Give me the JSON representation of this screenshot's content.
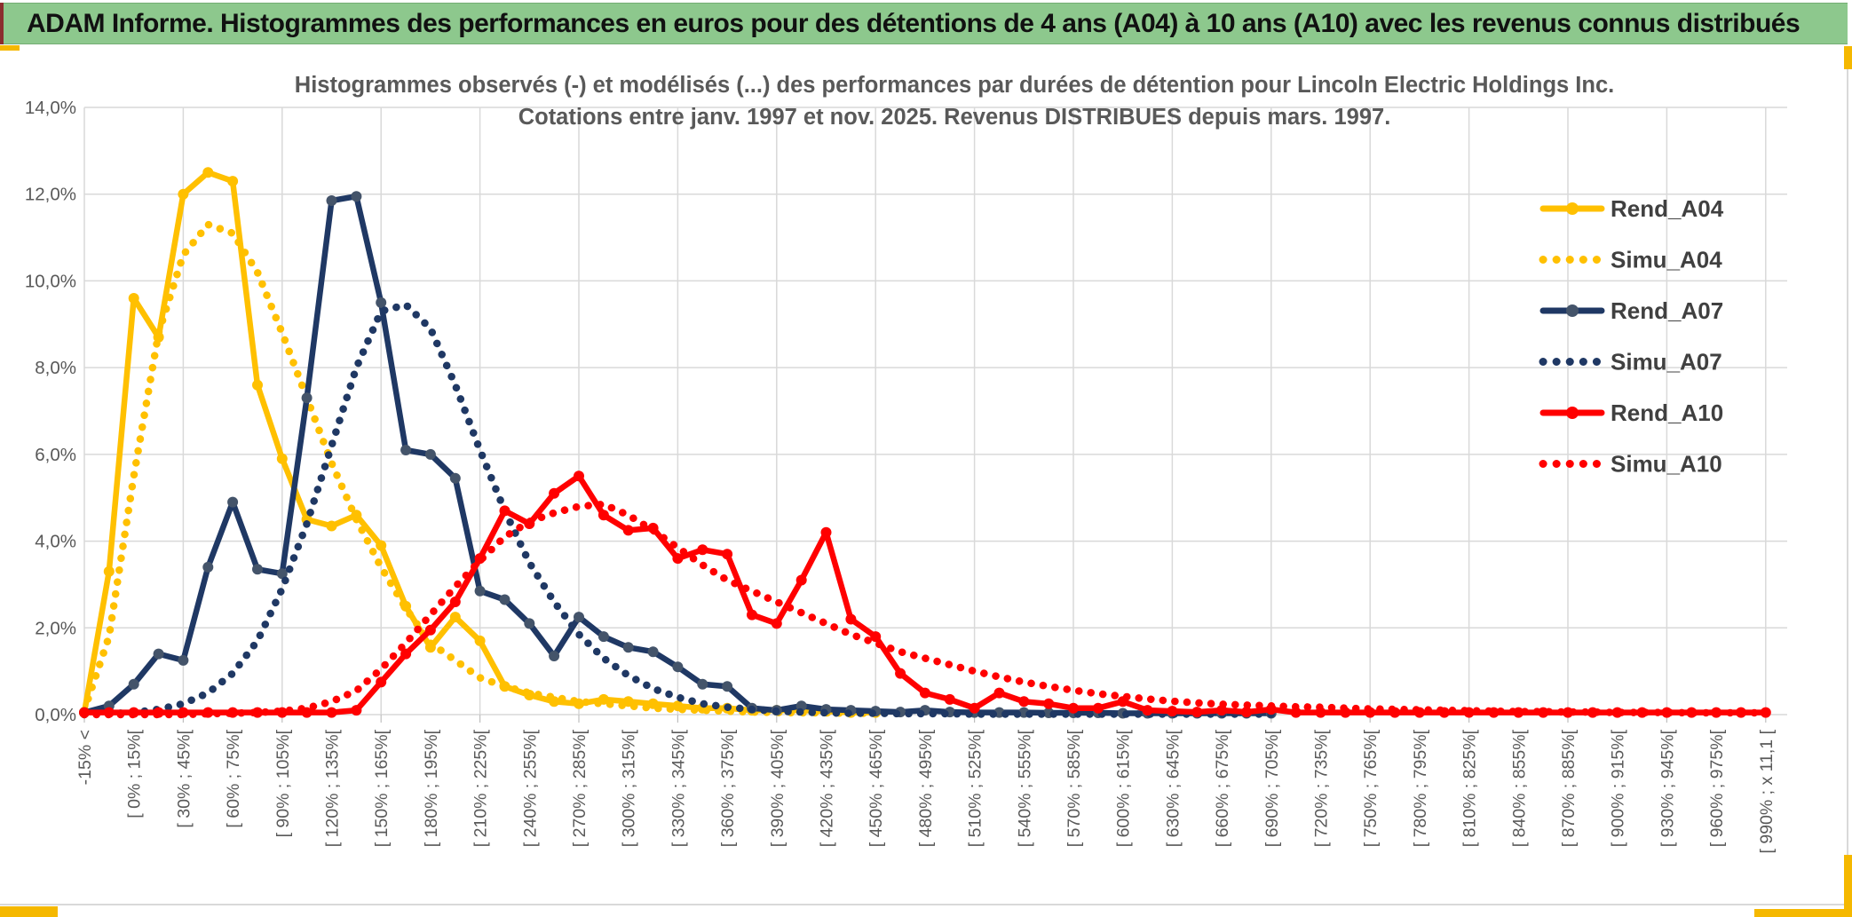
{
  "page": {
    "header_title": "ADAM Informe. Histogrammes des performances en euros pour des détentions de 4 ans (A04) à 10 ans (A10) avec les revenus connus distribués"
  },
  "colors": {
    "header_bg": "#8dc88d",
    "header_border": "#74ad74",
    "header_text": "#111111",
    "maroon_accent": "#8b2e2e",
    "accent_yellow": "#f5b800",
    "grid": "#d9d9d9",
    "tick": "#bfbfbf",
    "axis_text": "#595959",
    "title_text": "#595959",
    "legend_text": "#404040",
    "gold": "#FFC000",
    "navy": "#1F3864",
    "navy_marker": "#44546A",
    "red": "#FF0000"
  },
  "chart_data": {
    "type": "line",
    "title_line1": "Histogrammes observés (-) et modélisés (...) des performances par durées de détention pour Lincoln Electric Holdings Inc.",
    "title_line2": "Cotations entre janv. 1997 et nov. 2025. Revenus DISTRIBUES depuis mars. 1997.",
    "ylabel": "",
    "xlabel": "",
    "ylim": [
      0,
      14
    ],
    "grid": true,
    "legend_position": "right-overlay",
    "y_ticks": [
      "14,0%",
      "12,0%",
      "10,0%",
      "8,0%",
      "6,0%",
      "4,0%",
      "2,0%",
      "0,0%"
    ],
    "x_label_every_n_bins": 2,
    "x_labels": [
      "-15% <",
      "[ 0% ; 15%[",
      "[ 30% ; 45%[",
      "[ 60% ; 75%[",
      "[ 90% ; 105%[",
      "[ 120% ; 135%[",
      "[ 150% ; 165%[",
      "[ 180% ; 195%[",
      "[ 210% ; 225%[",
      "[ 240% ; 255%[",
      "[ 270% ; 285%[",
      "[ 300% ; 315%[",
      "[ 330% ; 345%[",
      "[ 360% ; 375%[",
      "[ 390% ; 405%[",
      "[ 420% ; 435%[",
      "[ 450% ; 465%[",
      "[ 480% ; 495%[",
      "[ 510% ; 525%[",
      "[ 540% ; 555%[",
      "[ 570% ; 585%[",
      "[ 600% ; 615%[",
      "[ 630% ; 645%[",
      "[ 660% ; 675%[",
      "[ 690% ; 705%[",
      "[ 720% ; 735%[",
      "[ 750% ; 765%[",
      "[ 780% ; 795%[",
      "[ 810% ; 825%[",
      "[ 840% ; 855%[",
      "[ 870% ; 885%[",
      "[ 900% ; 915%[",
      "[ 930% ; 945%[",
      "[ 960% ; 975%[",
      "[ 990% ; x 11,1 ["
    ],
    "series": [
      {
        "name": "Rend_A04",
        "style": "solid",
        "markers": true,
        "color": "#FFC000",
        "marker_color": "#FFC000",
        "values": [
          0.05,
          3.3,
          9.6,
          8.7,
          12.0,
          12.5,
          12.3,
          7.6,
          5.9,
          4.5,
          4.35,
          4.6,
          3.9,
          2.5,
          1.55,
          2.25,
          1.7,
          0.65,
          0.45,
          0.3,
          0.25,
          0.35,
          0.3,
          0.25,
          0.2,
          0.15,
          0.15,
          0.1,
          0.1,
          0.1,
          0.08,
          0.05,
          0.05,
          null,
          null,
          null,
          null,
          null,
          null,
          null,
          null,
          null,
          null,
          null,
          null,
          null,
          null,
          null,
          null,
          null,
          null,
          null,
          null,
          null,
          null,
          null,
          null,
          null,
          null,
          null,
          null,
          null,
          null,
          null,
          null,
          null,
          null,
          null,
          null
        ]
      },
      {
        "name": "Simu_A04",
        "style": "dotted",
        "markers": false,
        "color": "#FFC000",
        "values": [
          0.1,
          1.8,
          5.5,
          8.8,
          10.6,
          11.3,
          11.1,
          10.2,
          8.8,
          7.3,
          5.8,
          4.5,
          3.4,
          2.45,
          1.65,
          1.25,
          0.85,
          0.65,
          0.5,
          0.4,
          0.3,
          0.25,
          0.2,
          0.15,
          0.12,
          0.1,
          0.08,
          0.06,
          0.05,
          0.04,
          0.04,
          0.03,
          0.03,
          null,
          null,
          null,
          null,
          null,
          null,
          null,
          null,
          null,
          null,
          null,
          null,
          null,
          null,
          null,
          null,
          null,
          null,
          null,
          null,
          null,
          null,
          null,
          null,
          null,
          null,
          null,
          null,
          null,
          null,
          null,
          null,
          null,
          null,
          null,
          null
        ]
      },
      {
        "name": "Rend_A07",
        "style": "solid",
        "markers": true,
        "color": "#1F3864",
        "marker_color": "#44546A",
        "values": [
          0.05,
          0.2,
          0.7,
          1.4,
          1.25,
          3.4,
          4.9,
          3.35,
          3.25,
          7.3,
          11.85,
          11.95,
          9.5,
          6.1,
          6.0,
          5.45,
          2.85,
          2.65,
          2.1,
          1.35,
          2.25,
          1.8,
          1.55,
          1.45,
          1.1,
          0.7,
          0.65,
          0.15,
          0.1,
          0.2,
          0.12,
          0.1,
          0.08,
          0.06,
          0.1,
          0.06,
          0.05,
          0.05,
          0.05,
          0.04,
          0.04,
          0.04,
          0.03,
          0.03,
          0.03,
          0.03,
          0.03,
          0.03,
          0.03,
          null,
          null,
          null,
          null,
          null,
          null,
          null,
          null,
          null,
          null,
          null,
          null,
          null,
          null,
          null,
          null,
          null,
          null,
          null,
          null
        ]
      },
      {
        "name": "Simu_A07",
        "style": "dotted",
        "markers": false,
        "color": "#1F3864",
        "values": [
          0.0,
          0.02,
          0.05,
          0.12,
          0.25,
          0.5,
          0.95,
          1.7,
          2.9,
          4.4,
          6.2,
          8.0,
          9.3,
          9.45,
          8.9,
          7.6,
          6.1,
          4.7,
          3.5,
          2.6,
          1.85,
          1.3,
          0.9,
          0.6,
          0.4,
          0.25,
          0.17,
          0.12,
          0.08,
          0.06,
          0.04,
          0.03,
          0.03,
          0.02,
          0.02,
          0.02,
          0.01,
          0.01,
          0.01,
          0.01,
          0.01,
          0.01,
          0.01,
          0.01,
          0.01,
          0.01,
          0.01,
          0.01,
          0.01,
          null,
          null,
          null,
          null,
          null,
          null,
          null,
          null,
          null,
          null,
          null,
          null,
          null,
          null,
          null,
          null,
          null,
          null,
          null,
          null
        ]
      },
      {
        "name": "Rend_A10",
        "style": "solid",
        "markers": true,
        "color": "#FF0000",
        "marker_color": "#FF0000",
        "values": [
          0.05,
          0.05,
          0.05,
          0.05,
          0.05,
          0.05,
          0.05,
          0.05,
          0.05,
          0.05,
          0.05,
          0.1,
          0.75,
          1.4,
          1.95,
          2.6,
          3.6,
          4.7,
          4.4,
          5.1,
          5.5,
          4.6,
          4.25,
          4.3,
          3.6,
          3.8,
          3.7,
          2.3,
          2.1,
          3.1,
          4.2,
          2.2,
          1.8,
          0.95,
          0.5,
          0.35,
          0.15,
          0.5,
          0.3,
          0.25,
          0.15,
          0.15,
          0.3,
          0.1,
          0.08,
          0.06,
          0.1,
          0.06,
          0.12,
          0.05,
          0.05,
          0.05,
          0.05,
          0.05,
          0.05,
          0.05,
          0.05,
          0.05,
          0.05,
          0.05,
          0.05,
          0.05,
          0.05,
          0.05,
          0.05,
          0.05,
          0.05,
          0.05,
          0.05
        ]
      },
      {
        "name": "Simu_A10",
        "style": "dotted",
        "markers": false,
        "color": "#FF0000",
        "values": [
          0.0,
          0.0,
          0.0,
          0.0,
          0.0,
          0.02,
          0.03,
          0.05,
          0.08,
          0.15,
          0.3,
          0.55,
          1.05,
          1.65,
          2.3,
          2.95,
          3.55,
          4.1,
          4.45,
          4.65,
          4.8,
          4.85,
          4.6,
          4.25,
          3.85,
          3.45,
          3.1,
          2.85,
          2.6,
          2.35,
          2.1,
          1.85,
          1.65,
          1.45,
          1.3,
          1.15,
          1.0,
          0.87,
          0.75,
          0.65,
          0.56,
          0.48,
          0.42,
          0.36,
          0.31,
          0.27,
          0.24,
          0.22,
          0.2,
          0.18,
          0.17,
          0.15,
          0.13,
          0.12,
          0.11,
          0.1,
          0.09,
          0.08,
          0.07,
          0.07,
          0.06,
          0.06,
          0.05,
          0.05,
          0.05,
          0.04,
          0.04,
          0.04,
          0.04
        ]
      }
    ],
    "legend": [
      "Rend_A04",
      "Simu_A04",
      "Rend_A07",
      "Simu_A07",
      "Rend_A10",
      "Simu_A10"
    ]
  }
}
